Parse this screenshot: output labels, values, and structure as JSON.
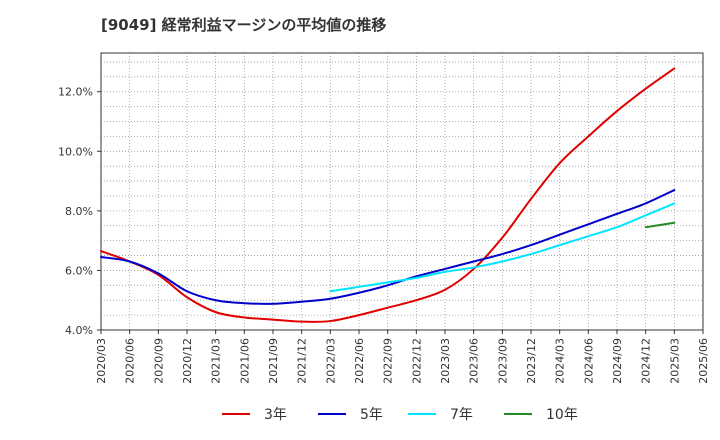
{
  "title": "[9049]  経常利益マージンの平均値の推移",
  "chart_data": {
    "type": "line",
    "categories": [
      "2020/03",
      "2020/06",
      "2020/09",
      "2020/12",
      "2021/03",
      "2021/06",
      "2021/09",
      "2021/12",
      "2022/03",
      "2022/06",
      "2022/09",
      "2022/12",
      "2023/03",
      "2023/06",
      "2023/09",
      "2023/12",
      "2024/03",
      "2024/06",
      "2024/09",
      "2024/12",
      "2025/03",
      "2025/06"
    ],
    "ylim": [
      4.0,
      13.3
    ],
    "yticks": [
      4.0,
      6.0,
      8.0,
      10.0,
      12.0
    ],
    "ytick_labels": [
      "4.0%",
      "6.0%",
      "8.0%",
      "10.0%",
      "12.0%"
    ],
    "grid": true,
    "legend_position": "bottom",
    "series": [
      {
        "name": "3年",
        "color": "#e00000",
        "values": [
          6.65,
          6.3,
          5.85,
          5.1,
          4.6,
          4.42,
          4.35,
          4.28,
          4.3,
          4.5,
          4.75,
          5.0,
          5.35,
          6.05,
          7.1,
          8.4,
          9.6,
          10.5,
          11.35,
          12.1,
          12.78,
          null
        ]
      },
      {
        "name": "5年",
        "color": "#0000cc",
        "values": [
          6.45,
          6.3,
          5.9,
          5.3,
          5.0,
          4.9,
          4.88,
          4.95,
          5.05,
          5.25,
          5.5,
          5.8,
          6.05,
          6.3,
          6.55,
          6.85,
          7.2,
          7.55,
          7.9,
          8.25,
          8.7,
          null
        ]
      },
      {
        "name": "7年",
        "color": "#00e5ff",
        "values": [
          null,
          null,
          null,
          null,
          null,
          null,
          null,
          null,
          5.3,
          5.45,
          5.6,
          5.75,
          5.95,
          6.1,
          6.3,
          6.55,
          6.85,
          7.15,
          7.45,
          7.85,
          8.25,
          null
        ]
      },
      {
        "name": "10年",
        "color": "#228b22",
        "values": [
          null,
          null,
          null,
          null,
          null,
          null,
          null,
          null,
          null,
          null,
          null,
          null,
          null,
          null,
          null,
          null,
          null,
          null,
          null,
          7.45,
          7.6,
          null
        ]
      }
    ]
  }
}
